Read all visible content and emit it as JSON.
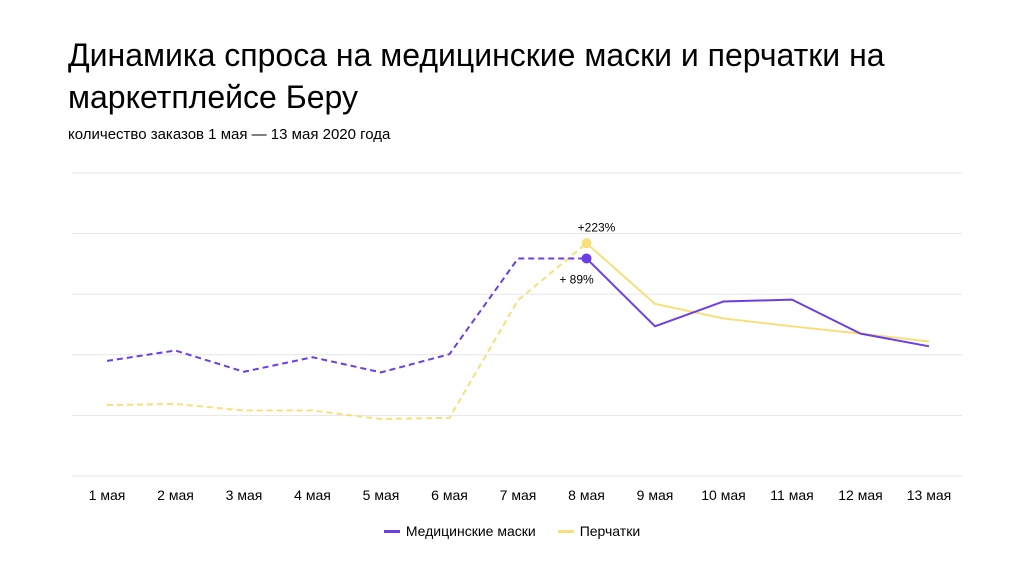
{
  "title": "Динамика спроса на медицинские маски и перчатки на маркетплейсе Беру",
  "subtitle": "количество заказов 1 мая — 13 мая 2020 года",
  "colors": {
    "masks": "#6c3ee6",
    "gloves": "#f7df7a",
    "grid": "#e6e6e6"
  },
  "chart_data": {
    "type": "line",
    "title": "Динамика спроса на медицинские маски и перчатки на маркетплейсе Беру",
    "subtitle": "количество заказов 1 мая — 13 мая 2020 года",
    "categories": [
      "1 мая",
      "2 мая",
      "3 мая",
      "4 мая",
      "5 мая",
      "6 мая",
      "7 мая",
      "8 мая",
      "9 мая",
      "10 мая",
      "11 мая",
      "12 мая",
      "13 мая"
    ],
    "ylim": [
      0,
      5
    ],
    "y_tick_labels_shown": false,
    "grid": true,
    "series": [
      {
        "name": "Медицинские маски",
        "color": "#6c3ee6",
        "values": [
          1.9,
          2.07,
          1.72,
          1.96,
          1.71,
          2.01,
          3.59,
          3.59,
          2.47,
          2.88,
          2.91,
          2.35,
          2.14
        ],
        "dashed_until_index": 7
      },
      {
        "name": "Перчатки",
        "color": "#f7df7a",
        "values": [
          1.17,
          1.19,
          1.08,
          1.08,
          0.94,
          0.96,
          2.9,
          3.84,
          2.84,
          2.6,
          2.47,
          2.35,
          2.22
        ],
        "dashed_until_index": 7
      }
    ],
    "annotations": [
      {
        "series": "Перчатки",
        "category": "8 мая",
        "text": "+223%"
      },
      {
        "series": "Медицинские маски",
        "category": "8 мая",
        "text": "+ 89%"
      }
    ],
    "legend": {
      "position": "bottom-center"
    }
  }
}
